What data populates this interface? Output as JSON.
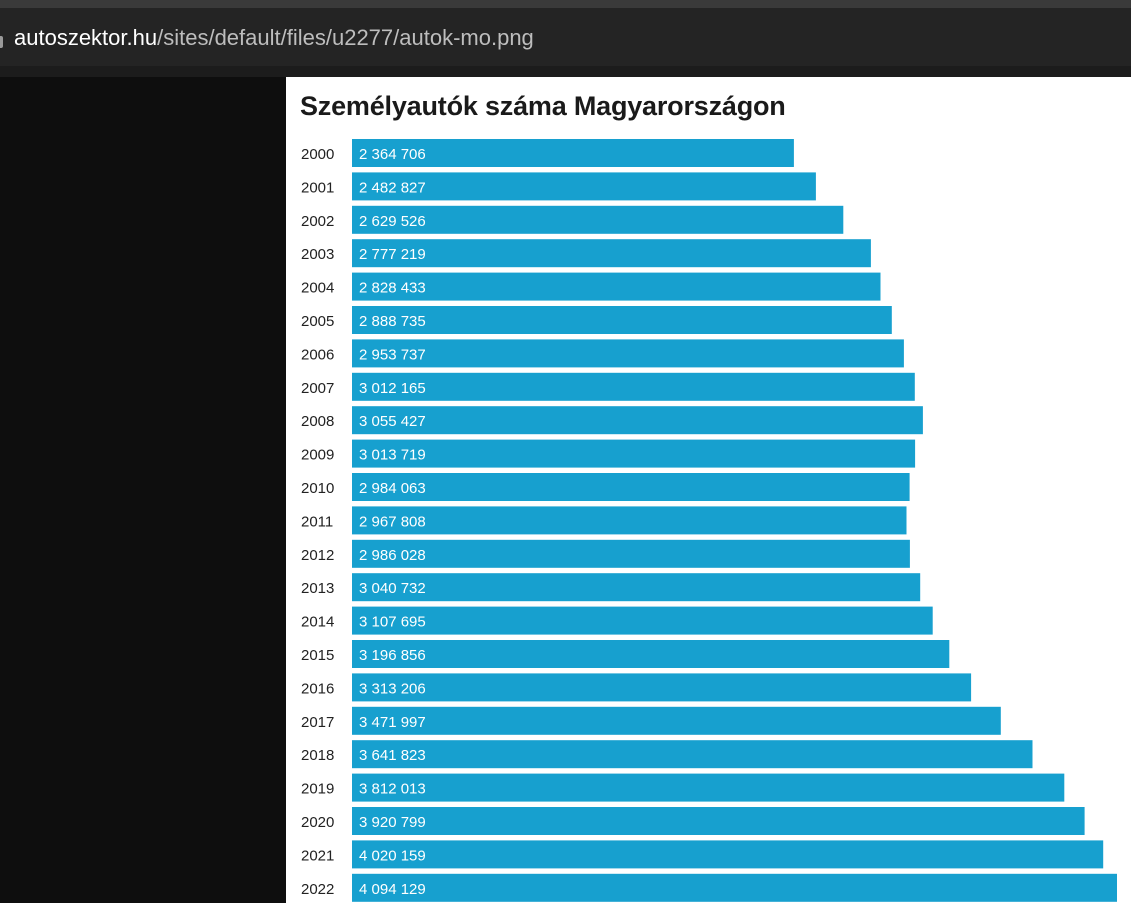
{
  "browser": {
    "url_domain": "autoszektor.hu",
    "url_path": "/sites/default/files/u2277/autok-mo.png"
  },
  "colors": {
    "bar": "#17a0cf",
    "background": "#ffffff"
  },
  "chart_data": {
    "type": "bar",
    "orientation": "horizontal",
    "title": "Személyautók száma Magyarországon",
    "xlabel": "",
    "ylabel": "",
    "grid": false,
    "categories": [
      "2000",
      "2001",
      "2002",
      "2003",
      "2004",
      "2005",
      "2006",
      "2007",
      "2008",
      "2009",
      "2010",
      "2011",
      "2012",
      "2013",
      "2014",
      "2015",
      "2016",
      "2017",
      "2018",
      "2019",
      "2020",
      "2021",
      "2022"
    ],
    "values": [
      2364706,
      2482827,
      2629526,
      2777219,
      2828433,
      2888735,
      2953737,
      3012165,
      3055427,
      3013719,
      2984063,
      2967808,
      2986028,
      3040732,
      3107695,
      3196856,
      3313206,
      3471997,
      3641823,
      3812013,
      3920799,
      4020159,
      4094129
    ],
    "value_labels": [
      "2 364 706",
      "2 482 827",
      "2 629 526",
      "2 777 219",
      "2 828 433",
      "2 888 735",
      "2 953 737",
      "3 012 165",
      "3 055 427",
      "3 013 719",
      "2 984 063",
      "2 967 808",
      "2 986 028",
      "3 040 732",
      "3 107 695",
      "3 196 856",
      "3 313 206",
      "3 471 997",
      "3 641 823",
      "3 812 013",
      "3 920 799",
      "4 020 159",
      "4 094 129"
    ]
  }
}
